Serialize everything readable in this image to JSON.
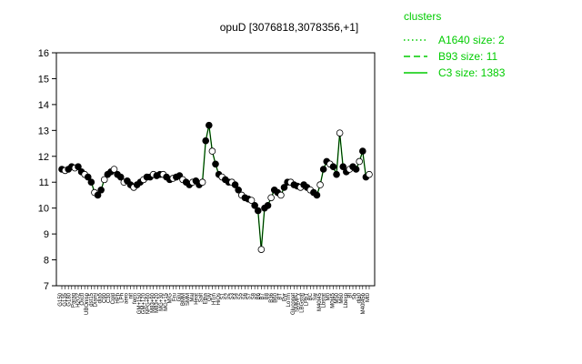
{
  "chart_data": {
    "type": "line",
    "title": "opuD [3076818,3078356,+1]",
    "xlabel": "",
    "ylabel": "",
    "ylim": [
      7,
      16
    ],
    "yticks": [
      7,
      8,
      9,
      10,
      11,
      12,
      13,
      14,
      15,
      16
    ],
    "grid": false,
    "legend_position": "top-right",
    "legend": {
      "title": "clusters",
      "items": [
        {
          "label": "A1640 size: 2",
          "style": "dotted"
        },
        {
          "label": "B93 size: 11",
          "style": "dashed"
        },
        {
          "label": "C3 size: 1383",
          "style": "solid"
        }
      ]
    },
    "colors": {
      "cluster_line": "#00cc00",
      "points": "#000000",
      "axis": "#000000"
    },
    "x_tick_labels": [
      "G150",
      "G135",
      "G180",
      "Paraq",
      "H2O2",
      "Oxctl",
      "UBOnisp",
      "dst15",
      "Diami",
      "dia5",
      "C90",
      "C30",
      "Cold",
      "HPh",
      "LPh",
      "aero",
      "nit",
      "ferm",
      "GM+150",
      "GM+120",
      "NPG+60",
      "M83+90",
      "M83+20",
      "MG+30",
      "MG+15",
      "M/G",
      "Fru",
      "Glu",
      "BMM",
      "SMM",
      "Mal",
      "Heat",
      "Salt",
      "Etha",
      "Gly",
      "HTm",
      "HiOs",
      "S1",
      "S2",
      "S3",
      "S4",
      "S5",
      "S6",
      "S7",
      "S8",
      "B6",
      "B7",
      "B8",
      "B36",
      "B60",
      "BT",
      "Pyr",
      "LoTm",
      "Gluconat",
      "SMMPy",
      "LBGstat",
      "LPhT",
      "BC",
      "Sw",
      "M40t45",
      "Lbstat",
      "M0",
      "M0t45",
      "M50",
      "M60",
      "Lbexp",
      "BI",
      "Sb",
      "dia0",
      "M40t45b",
      "Mt0"
    ],
    "x_tick_count": 95,
    "series_sparse": [
      {
        "i": 0,
        "y": 11.5
      },
      {
        "i": 1,
        "y": 11.55
      },
      {
        "i": 2,
        "y": 11.9
      },
      {
        "i": 3,
        "y": 11.3
      },
      {
        "i": 5,
        "y": 11.6
      },
      {
        "i": 10,
        "y": 10.3
      },
      {
        "i": 15,
        "y": 10.6
      },
      {
        "i": 22,
        "y": 10.9
      },
      {
        "i": 30,
        "y": 11.3
      },
      {
        "i": 38,
        "y": 11.0
      },
      {
        "i": 43,
        "y": 11.0
      },
      {
        "i": 44,
        "y": 12.6
      },
      {
        "i": 45,
        "y": 13.5
      },
      {
        "i": 46,
        "y": 12.2
      },
      {
        "i": 48,
        "y": 11.3
      },
      {
        "i": 50,
        "y": 11.1
      },
      {
        "i": 55,
        "y": 10.5
      },
      {
        "i": 58,
        "y": 10.2
      },
      {
        "i": 60,
        "y": 9.9
      },
      {
        "i": 61,
        "y": 8.4
      },
      {
        "i": 62,
        "y": 10.0
      },
      {
        "i": 66,
        "y": 10.5
      },
      {
        "i": 70,
        "y": 11.0
      },
      {
        "i": 78,
        "y": 10.3
      },
      {
        "i": 80,
        "y": 11.6
      },
      {
        "i": 83,
        "y": 11.2
      },
      {
        "i": 85,
        "y": 13.0
      },
      {
        "i": 88,
        "y": 11.5
      },
      {
        "i": 92,
        "y": 12.2
      },
      {
        "i": 94,
        "y": 11.3
      }
    ],
    "y_values": [
      11.5,
      11.45,
      11.5,
      11.6,
      11.55,
      11.6,
      11.4,
      11.3,
      11.2,
      11.0,
      10.6,
      10.5,
      10.7,
      11.1,
      11.3,
      11.4,
      11.5,
      11.3,
      11.2,
      11.0,
      11.05,
      10.9,
      10.8,
      10.9,
      11.0,
      11.1,
      11.2,
      11.2,
      11.3,
      11.25,
      11.3,
      11.3,
      11.2,
      11.1,
      11.15,
      11.2,
      11.25,
      11.1,
      11.0,
      10.9,
      11.0,
      11.05,
      10.9,
      11.0,
      12.6,
      13.2,
      12.2,
      11.7,
      11.3,
      11.2,
      11.1,
      11.0,
      11.0,
      10.9,
      10.7,
      10.5,
      10.4,
      10.35,
      10.3,
      10.1,
      9.9,
      8.4,
      10.0,
      10.1,
      10.4,
      10.7,
      10.6,
      10.5,
      10.8,
      11.0,
      11.0,
      10.9,
      10.85,
      10.8,
      10.9,
      10.8,
      10.7,
      10.6,
      10.5,
      10.9,
      11.5,
      11.8,
      11.7,
      11.6,
      11.3,
      12.9,
      11.6,
      11.4,
      11.5,
      11.6,
      11.5,
      11.8,
      12.2,
      11.2,
      11.3
    ]
  }
}
